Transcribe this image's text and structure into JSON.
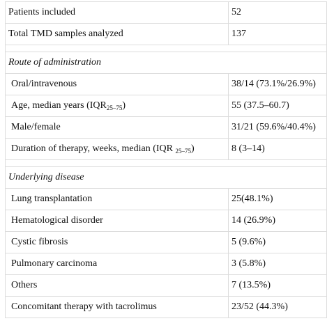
{
  "table": {
    "rows": [
      {
        "label": "Patients included",
        "value": "52"
      },
      {
        "label": "Total TMD samples analyzed",
        "value": "137"
      },
      {
        "section": "Route of administration"
      },
      {
        "label": "Oral/intravenous",
        "value": "38/14 (73.1%/26.9%)"
      },
      {
        "label": "Age, median years (IQR",
        "sub": "25–75",
        "label_end": ")",
        "value": "55 (37.5–60.7)"
      },
      {
        "label": "Male/female",
        "value": "31/21 (59.6%/40.4%)"
      },
      {
        "label": "Duration of therapy, weeks, median (IQR ",
        "sub": "25–75",
        "label_end": ")",
        "value": "8 (3–14)"
      },
      {
        "section": "Underlying disease"
      },
      {
        "label": "Lung transplantation",
        "value": "25(48.1%)"
      },
      {
        "label": "Hematological disorder",
        "value": "14 (26.9%)"
      },
      {
        "label": "Cystic fibrosis",
        "value": "5 (9.6%)"
      },
      {
        "label": "Pulmonary carcinoma",
        "value": "3 (5.8%)"
      },
      {
        "label": "Others",
        "value": "7 (13.5%)"
      },
      {
        "label": "Concomitant therapy with tacrolimus",
        "value": "23/52 (44.3%)"
      }
    ]
  }
}
